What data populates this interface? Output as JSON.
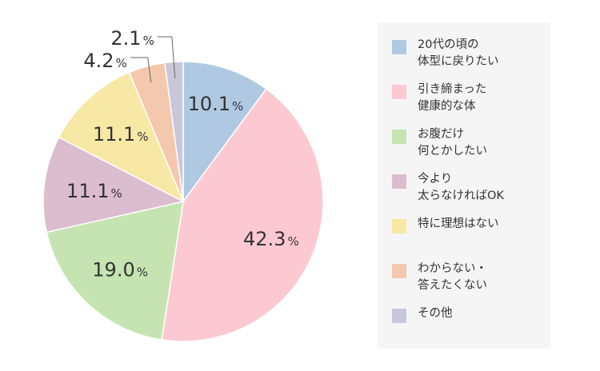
{
  "chart_data": {
    "type": "pie",
    "title": "",
    "start_angle_deg": 0,
    "direction": "clockwise",
    "slices": [
      {
        "label": "20代の頃の\n体型に戻りたい",
        "value": 10.1,
        "value_text": "10.1",
        "unit": "%",
        "color": "#afc9e2"
      },
      {
        "label": "引き締まった\n健康的な体",
        "value": 42.3,
        "value_text": "42.3",
        "unit": "%",
        "color": "#fcc9d2"
      },
      {
        "label": "お腹だけ\n何とかしたい",
        "value": 19.0,
        "value_text": "19.0",
        "unit": "%",
        "color": "#c5e4b1"
      },
      {
        "label": "今より\n太らなければOK",
        "value": 11.1,
        "value_text": "11.1",
        "unit": "%",
        "color": "#dbbdcf"
      },
      {
        "label": "特に理想はない",
        "value": 11.1,
        "value_text": "11.1",
        "unit": "%",
        "color": "#f7e8a5"
      },
      {
        "label": "わからない・\n答えたくない",
        "value": 4.2,
        "value_text": "4.2",
        "unit": "%",
        "color": "#f4c8ad"
      },
      {
        "label": "その他",
        "value": 2.1,
        "value_text": "2.1",
        "unit": "%",
        "color": "#c8c7dc"
      }
    ],
    "legend_placement": "right"
  }
}
